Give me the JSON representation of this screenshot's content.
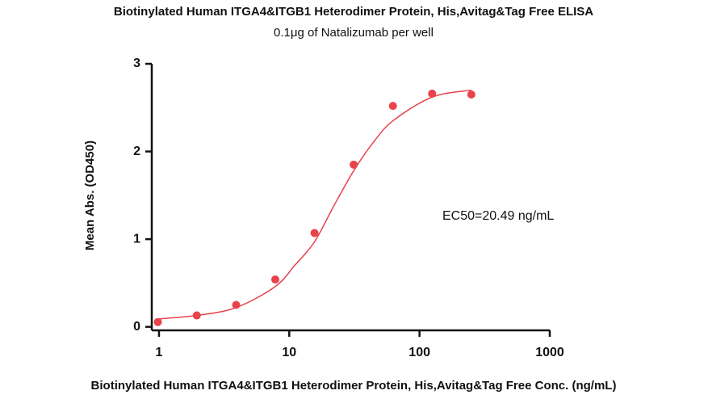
{
  "chart_data": {
    "type": "scatter",
    "title": "Biotinylated Human ITGA4&ITGB1 Heterodimer Protein, His,Avitag&Tag Free ELISA",
    "subtitle": "0.1μg of Natalizumab per well",
    "x_label": "Biotinylated Human ITGA4&ITGB1 Heterodimer Protein, His,Avitag&Tag Free Conc. (ng/mL)",
    "y_label": "Mean Abs. (OD450)",
    "annotation": "EC50=20.49 ng/mL",
    "xscale": "log",
    "xlim": [
      0.88,
      1000
    ],
    "ylim": [
      -0.04,
      3
    ],
    "xticks": [
      1,
      10,
      100,
      1000
    ],
    "yticks": [
      0,
      1,
      2,
      3
    ],
    "series": [
      {
        "style": "points",
        "color": "#e8434b",
        "x": [
          0.98,
          1.95,
          3.91,
          7.81,
          15.63,
          31.25,
          62.5,
          125,
          250
        ],
        "values": [
          0.055,
          0.13,
          0.25,
          0.54,
          1.07,
          1.85,
          2.52,
          2.66,
          2.65
        ]
      },
      {
        "style": "line",
        "color": "#e8434b",
        "x": [
          0.98,
          1.95,
          3.91,
          7.81,
          11,
          15.63,
          22,
          31.25,
          44,
          62.5,
          125,
          250
        ],
        "values": [
          0.09,
          0.13,
          0.22,
          0.46,
          0.7,
          0.97,
          1.38,
          1.78,
          2.1,
          2.35,
          2.62,
          2.7
        ]
      }
    ]
  }
}
